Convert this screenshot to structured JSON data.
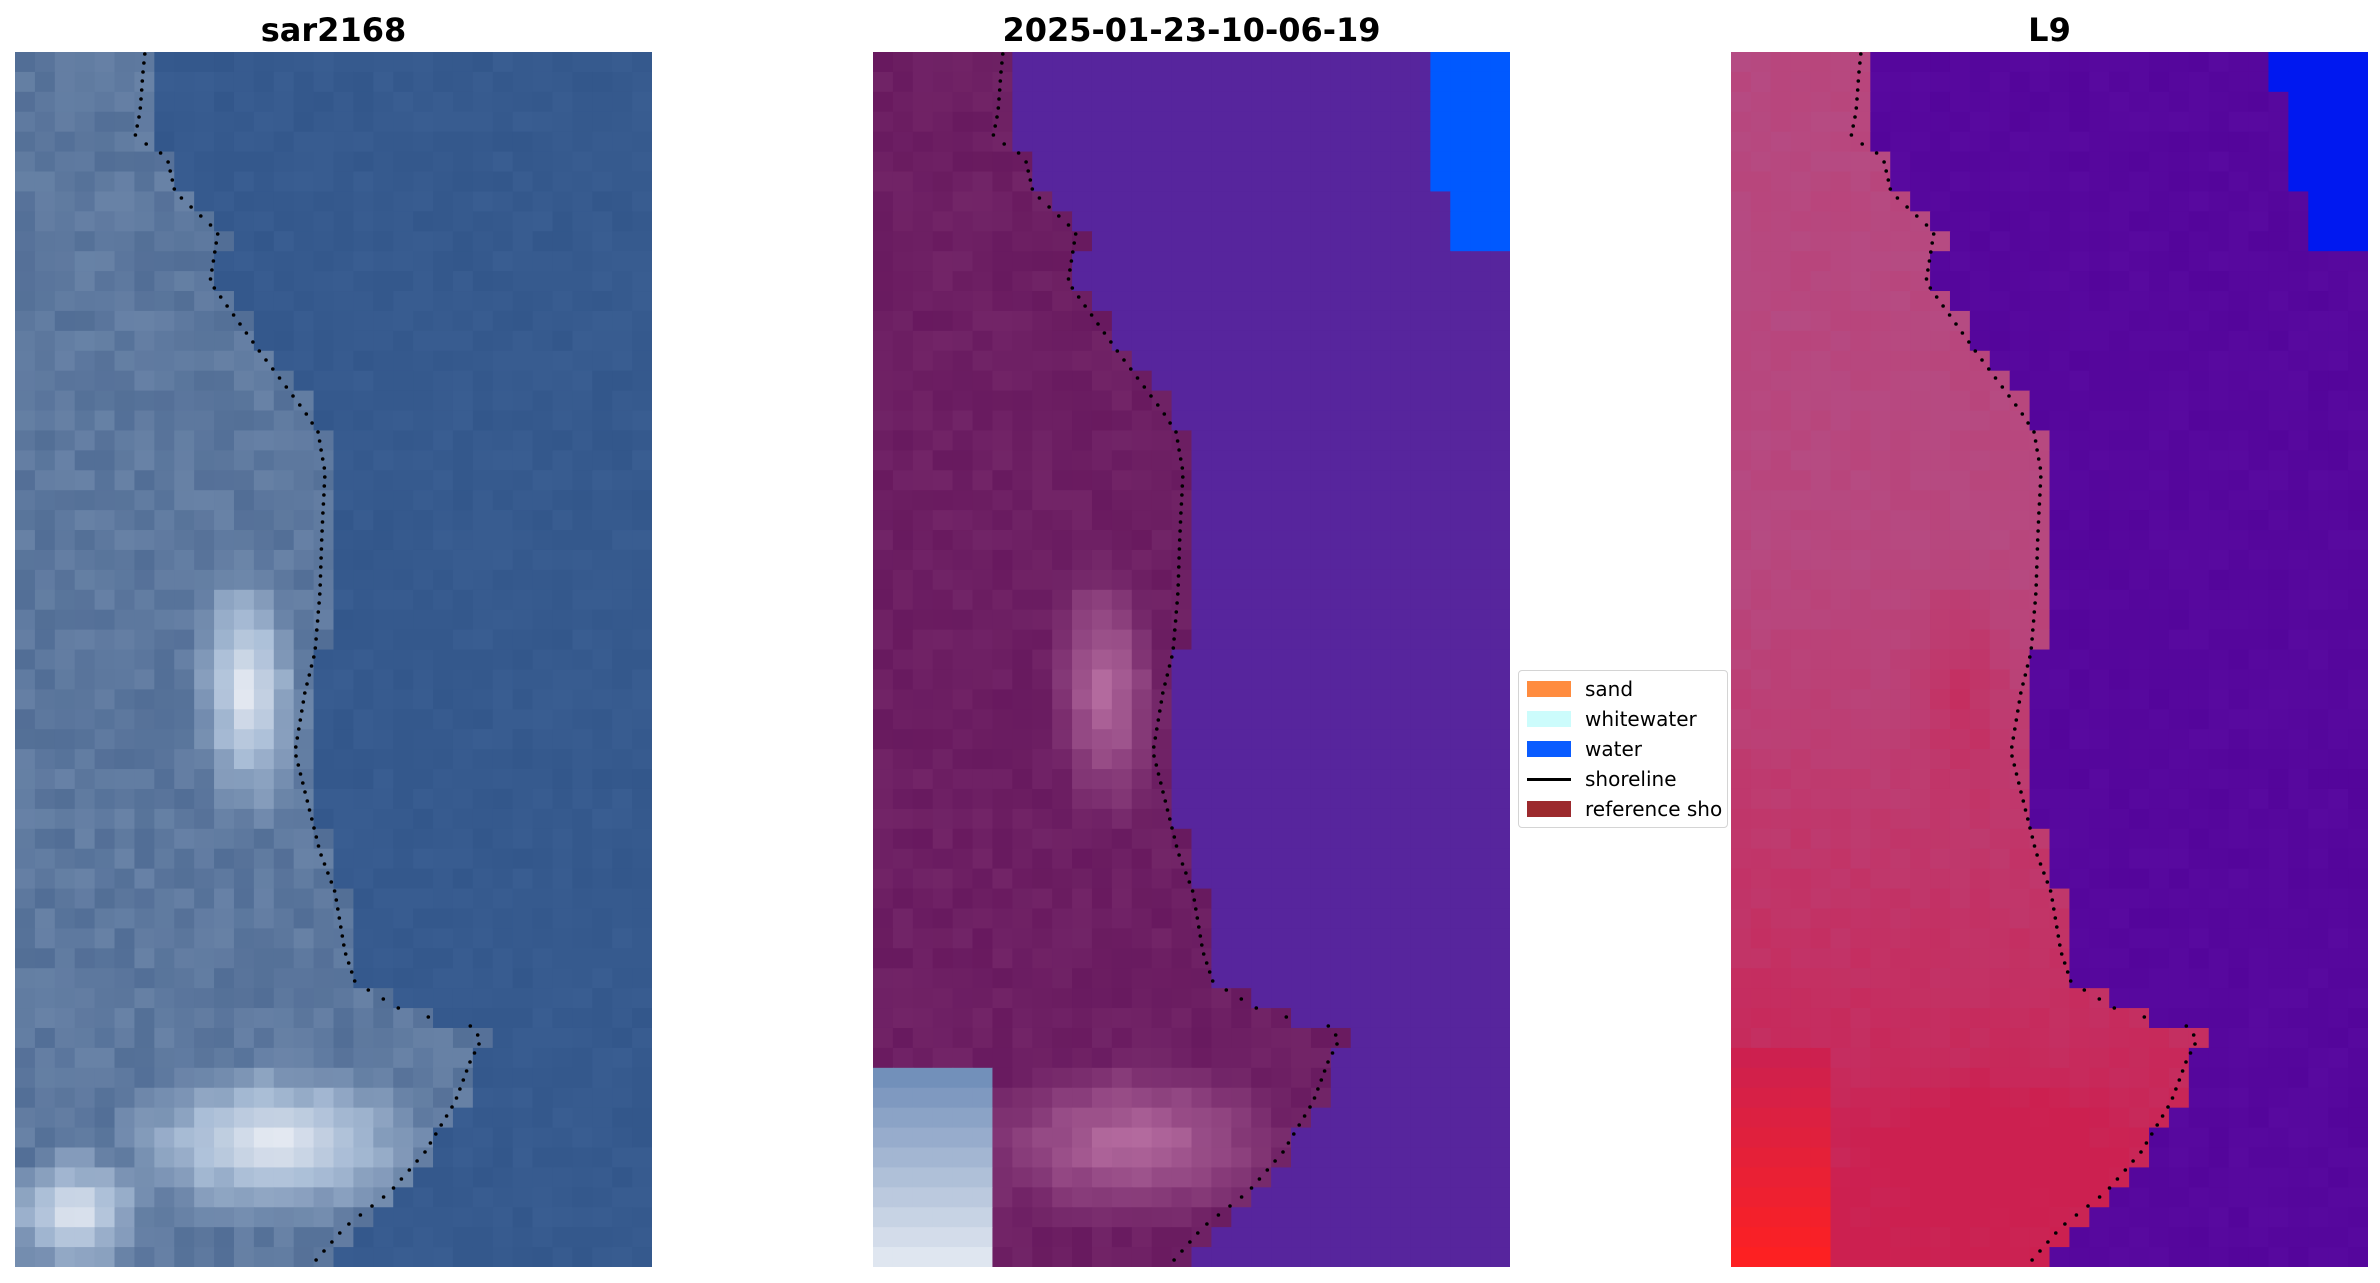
{
  "chart_data": {
    "type": "image",
    "panels": [
      {
        "title": "sar2168",
        "kind": "satellite-rgb",
        "colors": {
          "water": "#365a8e",
          "land_dark": "#5d789e",
          "land_light": "#a9bdd6",
          "bright": "#eef0f6"
        }
      },
      {
        "title": "2025-01-23-10-06-19",
        "kind": "classified-overlay",
        "colors": {
          "water_class": "#57259d",
          "land": "#6d1f63",
          "land_light": "#b36a9e",
          "water_edge": "#0059ff"
        }
      },
      {
        "title": "L9",
        "kind": "false-color",
        "colors": {
          "water": "#56079d",
          "land": "#b7487f",
          "land_red": "#cc2050",
          "bright_red": "#ff2020",
          "water_edge": "#0018f0"
        }
      }
    ],
    "legend": {
      "placement": "center",
      "items": [
        {
          "label": "sand",
          "type": "patch",
          "color": "#ff8c3f"
        },
        {
          "label": "whitewater",
          "type": "patch",
          "color": "#ccfcfc"
        },
        {
          "label": "water",
          "type": "patch",
          "color": "#0a5cff"
        },
        {
          "label": "shoreline",
          "type": "line",
          "color": "#000000"
        },
        {
          "label": "reference sho",
          "type": "patch",
          "color": "#9c2a2e"
        }
      ]
    },
    "shoreline_style": "dotted",
    "shoreline_color": "#000000"
  }
}
